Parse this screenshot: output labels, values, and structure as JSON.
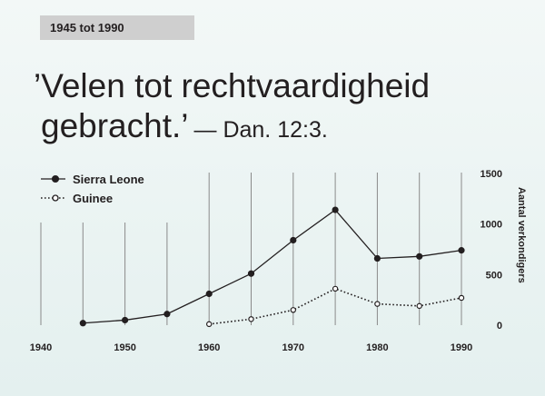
{
  "header": {
    "tag": "1945 tot 1990"
  },
  "quote": {
    "line1": "’Velen tot rechtvaardigheid",
    "line2": "gebracht.’",
    "reference": "— Dan. 12:3."
  },
  "chart_data": {
    "type": "line",
    "title": "",
    "xlabel": "",
    "ylabel": "Aantal verkondigers",
    "xlim": [
      1940,
      1990
    ],
    "ylim": [
      0,
      1500
    ],
    "x_ticks": [
      1940,
      1950,
      1960,
      1970,
      1980,
      1990
    ],
    "y_ticks": [
      0,
      500,
      1000,
      1500
    ],
    "grid": true,
    "legend_position": "top-left",
    "series": [
      {
        "name": "Sierra Leone",
        "style": "solid",
        "marker": "filled-circle",
        "color": "#231f20",
        "x": [
          1945,
          1950,
          1955,
          1960,
          1965,
          1970,
          1975,
          1980,
          1985,
          1990
        ],
        "y": [
          20,
          50,
          110,
          310,
          510,
          840,
          1140,
          660,
          680,
          740
        ]
      },
      {
        "name": "Guinee",
        "style": "dotted",
        "marker": "open-circle",
        "color": "#231f20",
        "x": [
          1960,
          1965,
          1970,
          1975,
          1980,
          1985,
          1990
        ],
        "y": [
          10,
          60,
          150,
          360,
          210,
          190,
          270
        ]
      }
    ]
  }
}
